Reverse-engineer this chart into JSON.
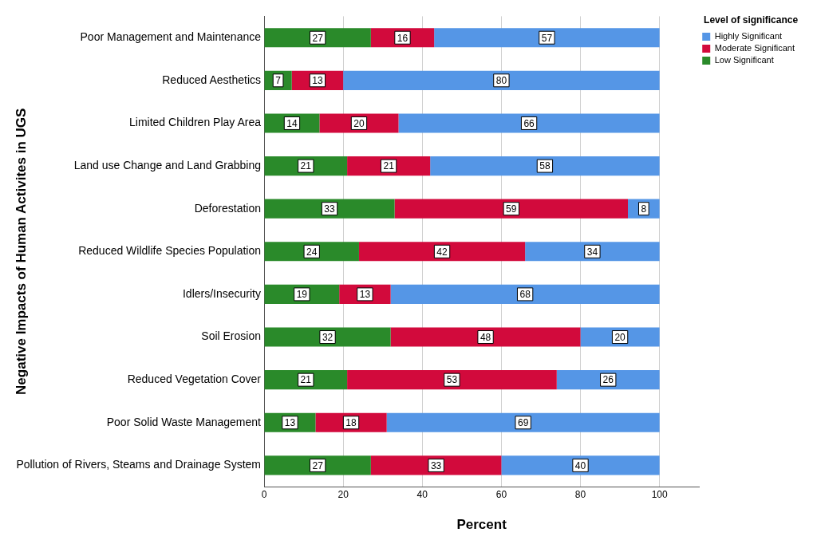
{
  "chart_data": {
    "type": "bar",
    "orientation": "horizontal",
    "stacked": true,
    "xlabel": "Percent",
    "ylabel": "Negative Impacts of Human Activites in UGS",
    "legend_title": "Level of significance",
    "legend": "top right",
    "grid": "x",
    "data_labels": true,
    "categories": [
      "Poor Management and Maintenance",
      "Reduced Aesthetics",
      "Limited Children Play Area",
      "Land use Change and Land Grabbing",
      "Deforestation",
      "Reduced Wildlife Species Population",
      "Idlers/Insecurity",
      "Soil Erosion",
      "Reduced Vegetation Cover",
      "Poor Solid Waste Management",
      "Pollution of Rivers, Steams and Drainage System"
    ],
    "series": [
      {
        "name": "Low Significant",
        "color": "#2a8a2a",
        "values": [
          27,
          7,
          14,
          21,
          33,
          24,
          19,
          32,
          21,
          13,
          27
        ]
      },
      {
        "name": "Moderate Significant",
        "color": "#d20a3c",
        "values": [
          16,
          13,
          20,
          21,
          59,
          42,
          13,
          48,
          53,
          18,
          33
        ]
      },
      {
        "name": "Highly Significant",
        "color": "#5596e6",
        "values": [
          57,
          80,
          66,
          58,
          8,
          34,
          68,
          20,
          26,
          69,
          40
        ]
      }
    ],
    "xlim": [
      0,
      110
    ],
    "xticks": [
      0,
      20,
      40,
      60,
      80,
      100
    ]
  }
}
